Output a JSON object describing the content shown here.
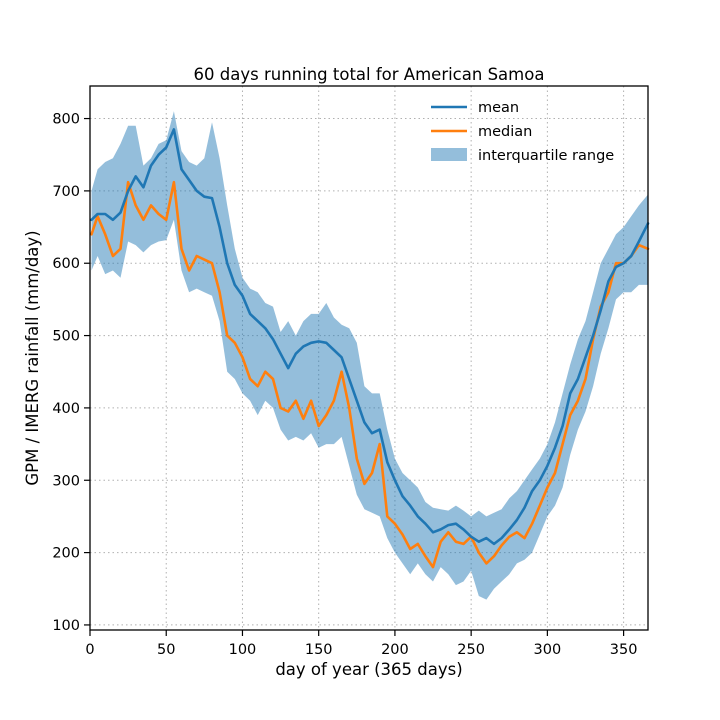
{
  "chart_data": {
    "type": "line",
    "title": "60 days running total for American Samoa",
    "xlabel": "day of year (365 days)",
    "ylabel": "GPM / IMERG rainfall (mm/day)",
    "xlim": [
      0,
      366
    ],
    "ylim": [
      93,
      845
    ],
    "xticks": [
      0,
      50,
      100,
      150,
      200,
      250,
      300,
      350
    ],
    "yticks": [
      100,
      200,
      300,
      400,
      500,
      600,
      700,
      800
    ],
    "grid": true,
    "legend_position": "top-right",
    "x": [
      1,
      5,
      10,
      15,
      20,
      25,
      30,
      35,
      40,
      45,
      50,
      55,
      60,
      65,
      70,
      75,
      80,
      85,
      90,
      95,
      100,
      105,
      110,
      115,
      120,
      125,
      130,
      135,
      140,
      145,
      150,
      155,
      160,
      165,
      170,
      175,
      180,
      185,
      190,
      195,
      200,
      205,
      210,
      215,
      220,
      225,
      230,
      235,
      240,
      245,
      250,
      255,
      260,
      265,
      270,
      275,
      280,
      285,
      290,
      295,
      300,
      305,
      310,
      315,
      320,
      325,
      330,
      335,
      340,
      345,
      350,
      355,
      360,
      366
    ],
    "series": [
      {
        "name": "mean",
        "color": "#1f77b4",
        "values": [
          660,
          668,
          668,
          660,
          670,
          700,
          720,
          705,
          735,
          750,
          760,
          785,
          730,
          715,
          700,
          692,
          690,
          650,
          600,
          570,
          555,
          530,
          520,
          510,
          495,
          475,
          455,
          475,
          485,
          490,
          492,
          490,
          480,
          470,
          440,
          410,
          380,
          365,
          370,
          325,
          300,
          278,
          265,
          250,
          240,
          228,
          232,
          238,
          240,
          232,
          222,
          215,
          220,
          212,
          220,
          232,
          245,
          262,
          285,
          300,
          320,
          345,
          375,
          420,
          440,
          470,
          500,
          535,
          575,
          595,
          600,
          610,
          630,
          655
        ]
      },
      {
        "name": "median",
        "color": "#ff7f0e",
        "values": [
          640,
          665,
          640,
          610,
          620,
          712,
          680,
          660,
          680,
          668,
          660,
          712,
          620,
          590,
          610,
          605,
          600,
          560,
          500,
          490,
          470,
          440,
          430,
          450,
          440,
          400,
          395,
          410,
          385,
          410,
          375,
          390,
          410,
          450,
          400,
          330,
          295,
          310,
          350,
          250,
          240,
          225,
          205,
          212,
          195,
          180,
          215,
          228,
          215,
          212,
          222,
          200,
          185,
          195,
          210,
          222,
          228,
          220,
          240,
          265,
          290,
          310,
          350,
          390,
          410,
          440,
          495,
          540,
          560,
          600,
          600,
          610,
          625,
          620
        ]
      }
    ],
    "band": {
      "name": "interquartile range",
      "color": "#1f77b4",
      "opacity": 0.48,
      "lower": [
        590,
        610,
        585,
        590,
        580,
        630,
        625,
        615,
        625,
        630,
        632,
        660,
        590,
        560,
        565,
        560,
        555,
        520,
        450,
        440,
        420,
        410,
        390,
        410,
        400,
        370,
        355,
        360,
        355,
        365,
        345,
        350,
        350,
        360,
        320,
        280,
        260,
        255,
        250,
        220,
        200,
        185,
        170,
        185,
        170,
        160,
        180,
        170,
        155,
        160,
        175,
        140,
        135,
        150,
        160,
        170,
        185,
        190,
        200,
        225,
        250,
        265,
        290,
        335,
        370,
        395,
        430,
        475,
        510,
        550,
        560,
        560,
        570,
        570
      ],
      "upper": [
        700,
        730,
        740,
        745,
        765,
        790,
        790,
        735,
        745,
        765,
        770,
        810,
        755,
        740,
        735,
        745,
        795,
        745,
        680,
        620,
        580,
        565,
        560,
        545,
        540,
        505,
        520,
        500,
        520,
        530,
        530,
        545,
        525,
        515,
        510,
        490,
        430,
        420,
        420,
        370,
        330,
        310,
        300,
        290,
        270,
        262,
        260,
        258,
        265,
        258,
        250,
        258,
        250,
        255,
        260,
        275,
        285,
        300,
        315,
        330,
        350,
        380,
        420,
        460,
        495,
        520,
        560,
        600,
        620,
        640,
        650,
        665,
        680,
        695
      ]
    }
  }
}
